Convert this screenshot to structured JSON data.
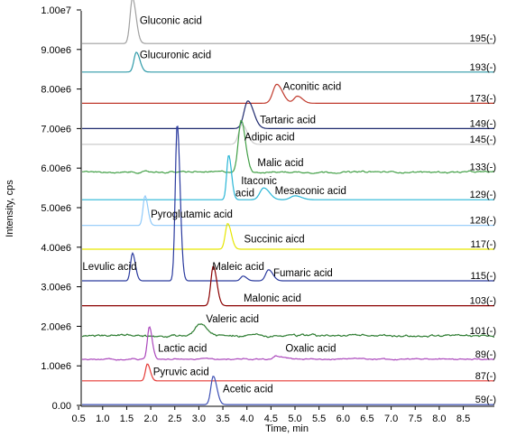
{
  "chart_data": {
    "type": "line",
    "xlabel": "Time, min",
    "ylabel": "Intensity, cps",
    "xlim": [
      0,
      8.75
    ],
    "ylim": [
      0,
      10000000
    ],
    "x_ticks": [
      0.5,
      1.0,
      1.5,
      2.0,
      2.5,
      3.0,
      3.5,
      4.0,
      4.5,
      5.0,
      5.5,
      6.0,
      6.5,
      7.0,
      7.5,
      8.0,
      8.5
    ],
    "x_tick_labels": [
      "0.5",
      "1.0",
      "1.5",
      "2.0",
      "2.5",
      "3.0",
      "3.5",
      "4.0",
      "4.5",
      "5.0",
      "5.5",
      "6.0",
      "6.5",
      "7.0",
      "7.5",
      "8.0",
      "8.5"
    ],
    "y_ticks": [
      0,
      1000000,
      2000000,
      3000000,
      4000000,
      5000000,
      6000000,
      7000000,
      8000000,
      9000000,
      10000000
    ],
    "y_tick_labels": [
      "0.00",
      "1.00e6",
      "2.00e6",
      "3.00e6",
      "4.00e6",
      "5.00e6",
      "6.00e6",
      "7.00e6",
      "8.00e6",
      "9.00e6",
      "1.00e7"
    ],
    "grid": false,
    "series": [
      {
        "label": "195(-)",
        "color": "#a0a0a0",
        "baseline": 9150000,
        "noise": 0,
        "peaks": [
          {
            "rt": 1.62,
            "height": 1150000,
            "width": 0.05
          }
        ]
      },
      {
        "label": "193(-)",
        "color": "#2e9aa8",
        "baseline": 8430000,
        "noise": 0,
        "peaks": [
          {
            "rt": 1.7,
            "height": 500000,
            "width": 0.05
          }
        ]
      },
      {
        "label": "173(-)",
        "color": "#c0392b",
        "baseline": 7640000,
        "noise": 0,
        "peaks": [
          {
            "rt": 4.62,
            "height": 480000,
            "width": 0.08
          },
          {
            "rt": 5.05,
            "height": 180000,
            "width": 0.07
          }
        ]
      },
      {
        "label": "149(-)",
        "color": "#1f2a6e",
        "baseline": 7000000,
        "noise": 0,
        "peaks": [
          {
            "rt": 4.02,
            "height": 700000,
            "width": 0.08
          }
        ]
      },
      {
        "label": "145(-)",
        "color": "#cccccc",
        "baseline": 6600000,
        "noise": 0,
        "peaks": [
          {
            "rt": 3.9,
            "height": 500000,
            "width": 0.07
          }
        ]
      },
      {
        "label": "133(-)",
        "color": "#43a047",
        "baseline": 5900000,
        "noise": 25000,
        "peaks": [
          {
            "rt": 3.88,
            "height": 1300000,
            "width": 0.06
          }
        ]
      },
      {
        "label": "129(-)",
        "color": "#29b6d6",
        "baseline": 5200000,
        "noise": 0,
        "peaks": [
          {
            "rt": 3.62,
            "height": 1130000,
            "width": 0.04
          },
          {
            "rt": 4.35,
            "height": 300000,
            "width": 0.08
          },
          {
            "rt": 5.0,
            "height": 100000,
            "width": 0.09
          }
        ]
      },
      {
        "label": "128(-)",
        "color": "#90caf9",
        "baseline": 4550000,
        "noise": 0,
        "peaks": [
          {
            "rt": 1.88,
            "height": 750000,
            "width": 0.04
          }
        ]
      },
      {
        "label": "117(-)",
        "color": "#e6e600",
        "baseline": 3950000,
        "noise": 0,
        "peaks": [
          {
            "rt": 3.6,
            "height": 650000,
            "width": 0.05
          }
        ]
      },
      {
        "label": "115(-)",
        "color": "#2a3a9e",
        "baseline": 3150000,
        "noise": 0,
        "peaks": [
          {
            "rt": 1.62,
            "height": 700000,
            "width": 0.04
          },
          {
            "rt": 2.55,
            "height": 3970000,
            "width": 0.04
          },
          {
            "rt": 3.92,
            "height": 120000,
            "width": 0.05
          },
          {
            "rt": 4.45,
            "height": 280000,
            "width": 0.06
          }
        ]
      },
      {
        "label": "103(-)",
        "color": "#8b0000",
        "baseline": 2520000,
        "noise": 0,
        "peaks": [
          {
            "rt": 3.3,
            "height": 1000000,
            "width": 0.05
          }
        ]
      },
      {
        "label": "101(-)",
        "color": "#2e7d32",
        "baseline": 1760000,
        "noise": 35000,
        "peaks": [
          {
            "rt": 3.02,
            "height": 320000,
            "width": 0.09
          }
        ]
      },
      {
        "label": "89(-)",
        "color": "#ab47bc",
        "baseline": 1170000,
        "noise": 20000,
        "peaks": [
          {
            "rt": 1.97,
            "height": 820000,
            "width": 0.04
          },
          {
            "rt": 4.62,
            "height": 80000,
            "width": 0.08
          }
        ]
      },
      {
        "label": "87(-)",
        "color": "#e53935",
        "baseline": 620000,
        "noise": 0,
        "peaks": [
          {
            "rt": 1.93,
            "height": 430000,
            "width": 0.04
          }
        ]
      },
      {
        "label": "59(-)",
        "color": "#3f51b5",
        "baseline": 20000,
        "noise": 0,
        "peaks": [
          {
            "rt": 3.3,
            "height": 720000,
            "width": 0.05
          }
        ]
      }
    ],
    "annotations": [
      {
        "text": "Gluconic acid",
        "x": 1.77,
        "y": 9650000
      },
      {
        "text": "Glucuronic acid",
        "x": 1.77,
        "y": 8780000
      },
      {
        "text": "Aconitic acid",
        "x": 4.75,
        "y": 7980000
      },
      {
        "text": "Tartaric acid",
        "x": 4.27,
        "y": 7140000
      },
      {
        "text": "Adipic acid",
        "x": 3.95,
        "y": 6700000
      },
      {
        "text": "Malic acid",
        "x": 4.22,
        "y": 6050000
      },
      {
        "text": "Itaconic",
        "x": 3.88,
        "y": 5590000
      },
      {
        "text": "acid",
        "x": 3.76,
        "y": 5280000
      },
      {
        "text": "Mesaconic acid",
        "x": 4.58,
        "y": 5340000
      },
      {
        "text": "Pyroglutamic acid",
        "x": 2.0,
        "y": 4750000
      },
      {
        "text": "Succinic aicd",
        "x": 3.94,
        "y": 4120000
      },
      {
        "text": "Levulic acid",
        "x": 0.58,
        "y": 3420000
      },
      {
        "text": "Maleic acid",
        "x": 3.28,
        "y": 3420000
      },
      {
        "text": "Fumaric acid",
        "x": 4.55,
        "y": 3270000
      },
      {
        "text": "Malonic acid",
        "x": 3.93,
        "y": 2620000
      },
      {
        "text": "Valeric acid",
        "x": 3.15,
        "y": 2100000
      },
      {
        "text": "Lactic acid",
        "x": 2.15,
        "y": 1360000
      },
      {
        "text": "Oxalic acid",
        "x": 4.8,
        "y": 1360000
      },
      {
        "text": "Pyruvic acid",
        "x": 2.05,
        "y": 770000
      },
      {
        "text": "Acetic acid",
        "x": 3.5,
        "y": 330000
      }
    ]
  }
}
